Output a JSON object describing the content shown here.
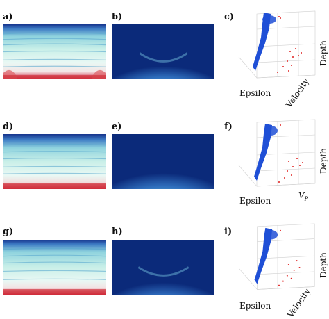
{
  "panels": [
    {
      "id": "a",
      "label": "a)",
      "kind": "sym"
    },
    {
      "id": "b",
      "label": "b)",
      "kind": "blue"
    },
    {
      "id": "c",
      "label": "c)",
      "kind": "3d",
      "xlabel": "Epsilon",
      "ylabel": "Velocity",
      "zlabel": "Depth"
    },
    {
      "id": "d",
      "label": "d)",
      "kind": "sym"
    },
    {
      "id": "e",
      "label": "e)",
      "kind": "blue"
    },
    {
      "id": "f",
      "label": "f)",
      "kind": "3d",
      "xlabel": "Epsilon",
      "ylabel": "V",
      "ylabel_sub": "P",
      "zlabel": "Depth"
    },
    {
      "id": "g",
      "label": "g)",
      "kind": "sym"
    },
    {
      "id": "h",
      "label": "h)",
      "kind": "blue"
    },
    {
      "id": "i",
      "label": "i)",
      "kind": "3d",
      "xlabel": "Epsilon",
      "ylabel": "Velocity",
      "zlabel": "Depth"
    }
  ],
  "colors": {
    "deep_blue": "#0b2a7a",
    "cyan_light": "#bfeee6",
    "red": "#c8102e",
    "scatter_blue": "#1f4fd6",
    "scatter_red": "#e0201f"
  }
}
